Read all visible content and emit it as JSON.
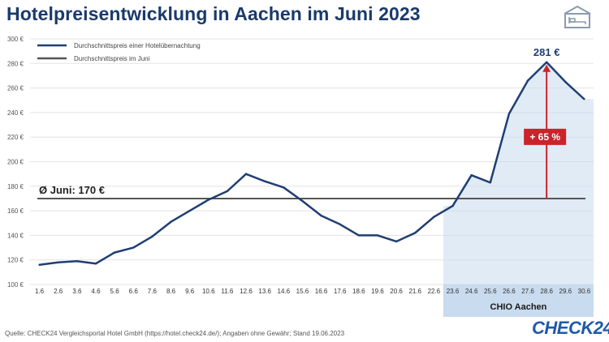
{
  "title": "Hotelpreisentwicklung in Aachen im Juni 2023",
  "source": "Quelle: CHECK24 Vergleichsportal Hotel GmbH (https://hotel.check24.de/); Angaben ohne Gewähr; Stand 19.06.2023",
  "logo": "CHECK24",
  "icon": "hotel-bed-icon",
  "colors": {
    "title": "#1a3a6b",
    "line": "#1f3f73",
    "avg": "#555555",
    "shade": "#c9dbee",
    "arrow": "#cc2229",
    "logo": "#1e5aa8"
  },
  "chart_data": {
    "type": "line",
    "categories": [
      "1.6",
      "2.6",
      "3.6",
      "4.6",
      "5.6",
      "6.6",
      "7.6",
      "8.6",
      "9.6",
      "10.6",
      "11.6",
      "12.6",
      "13.6",
      "14.6",
      "15.6",
      "16.6",
      "17.6",
      "18.6",
      "19.6",
      "20.6",
      "21.6",
      "22.6",
      "23.6",
      "24.6",
      "25.6",
      "26.6",
      "27.6",
      "28.6",
      "29.6",
      "30.6"
    ],
    "series": [
      {
        "name": "Durchschnittspreis einer Hotelübernachtung",
        "values": [
          116,
          118,
          119,
          117,
          126,
          130,
          139,
          151,
          160,
          169,
          176,
          190,
          184,
          179,
          168,
          156,
          149,
          140,
          140,
          135,
          142,
          155,
          164,
          189,
          183,
          239,
          266,
          281,
          265,
          251
        ]
      },
      {
        "name": "Durchschnittspreis im Juni",
        "value": 170
      }
    ],
    "ylim": [
      100,
      300
    ],
    "yticks": [
      "100 €",
      "120 €",
      "140 €",
      "160 €",
      "180 €",
      "200 €",
      "220 €",
      "240 €",
      "260 €",
      "280 €",
      "300 €"
    ],
    "grid": true,
    "legend_position": "top-left",
    "annotations": {
      "avg_label": "Ø Juni: 170 €",
      "peak_label": "281 €",
      "increase_label": "+ 65 %",
      "highlight_label": "CHIO Aachen",
      "highlight_range": [
        "23.6",
        "30.6"
      ]
    }
  }
}
